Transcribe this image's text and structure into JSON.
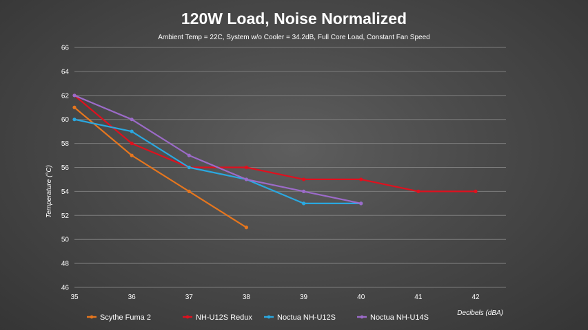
{
  "chart_data": {
    "type": "line",
    "title": "120W Load, Noise Normalized",
    "subtitle": "Ambient Temp = 22C, System w/o Cooler = 34.2dB, Full Core Load, Constant Fan Speed",
    "xlabel": "Decibels (dBA)",
    "ylabel": "Temperature (°C)",
    "xlim": [
      35,
      42
    ],
    "ylim": [
      46,
      66
    ],
    "x_ticks": [
      "35",
      "36",
      "37",
      "38",
      "39",
      "40",
      "41",
      "42"
    ],
    "y_ticks": [
      "46",
      "48",
      "50",
      "52",
      "54",
      "56",
      "58",
      "60",
      "62",
      "64",
      "66"
    ],
    "grid": "horizontal",
    "legend_position": "bottom",
    "series": [
      {
        "name": "Scythe Fuma 2",
        "color": "#e6761e",
        "x": [
          35,
          36,
          37,
          38
        ],
        "y": [
          61,
          57,
          54,
          51
        ]
      },
      {
        "name": "NH-U12S Redux",
        "color": "#e0101e",
        "x": [
          35,
          36,
          37,
          38,
          39,
          40,
          41,
          42
        ],
        "y": [
          62,
          58,
          56,
          56,
          55,
          55,
          54,
          54
        ]
      },
      {
        "name": "Noctua NH-U12S",
        "color": "#2aa8e0",
        "x": [
          35,
          36,
          37,
          38,
          39,
          40
        ],
        "y": [
          60,
          59,
          56,
          55,
          53,
          53
        ]
      },
      {
        "name": "Noctua NH-U14S",
        "color": "#9c6bc9",
        "x": [
          35,
          36,
          37,
          38,
          39,
          40
        ],
        "y": [
          62,
          60,
          57,
          55,
          54,
          53
        ]
      }
    ]
  }
}
